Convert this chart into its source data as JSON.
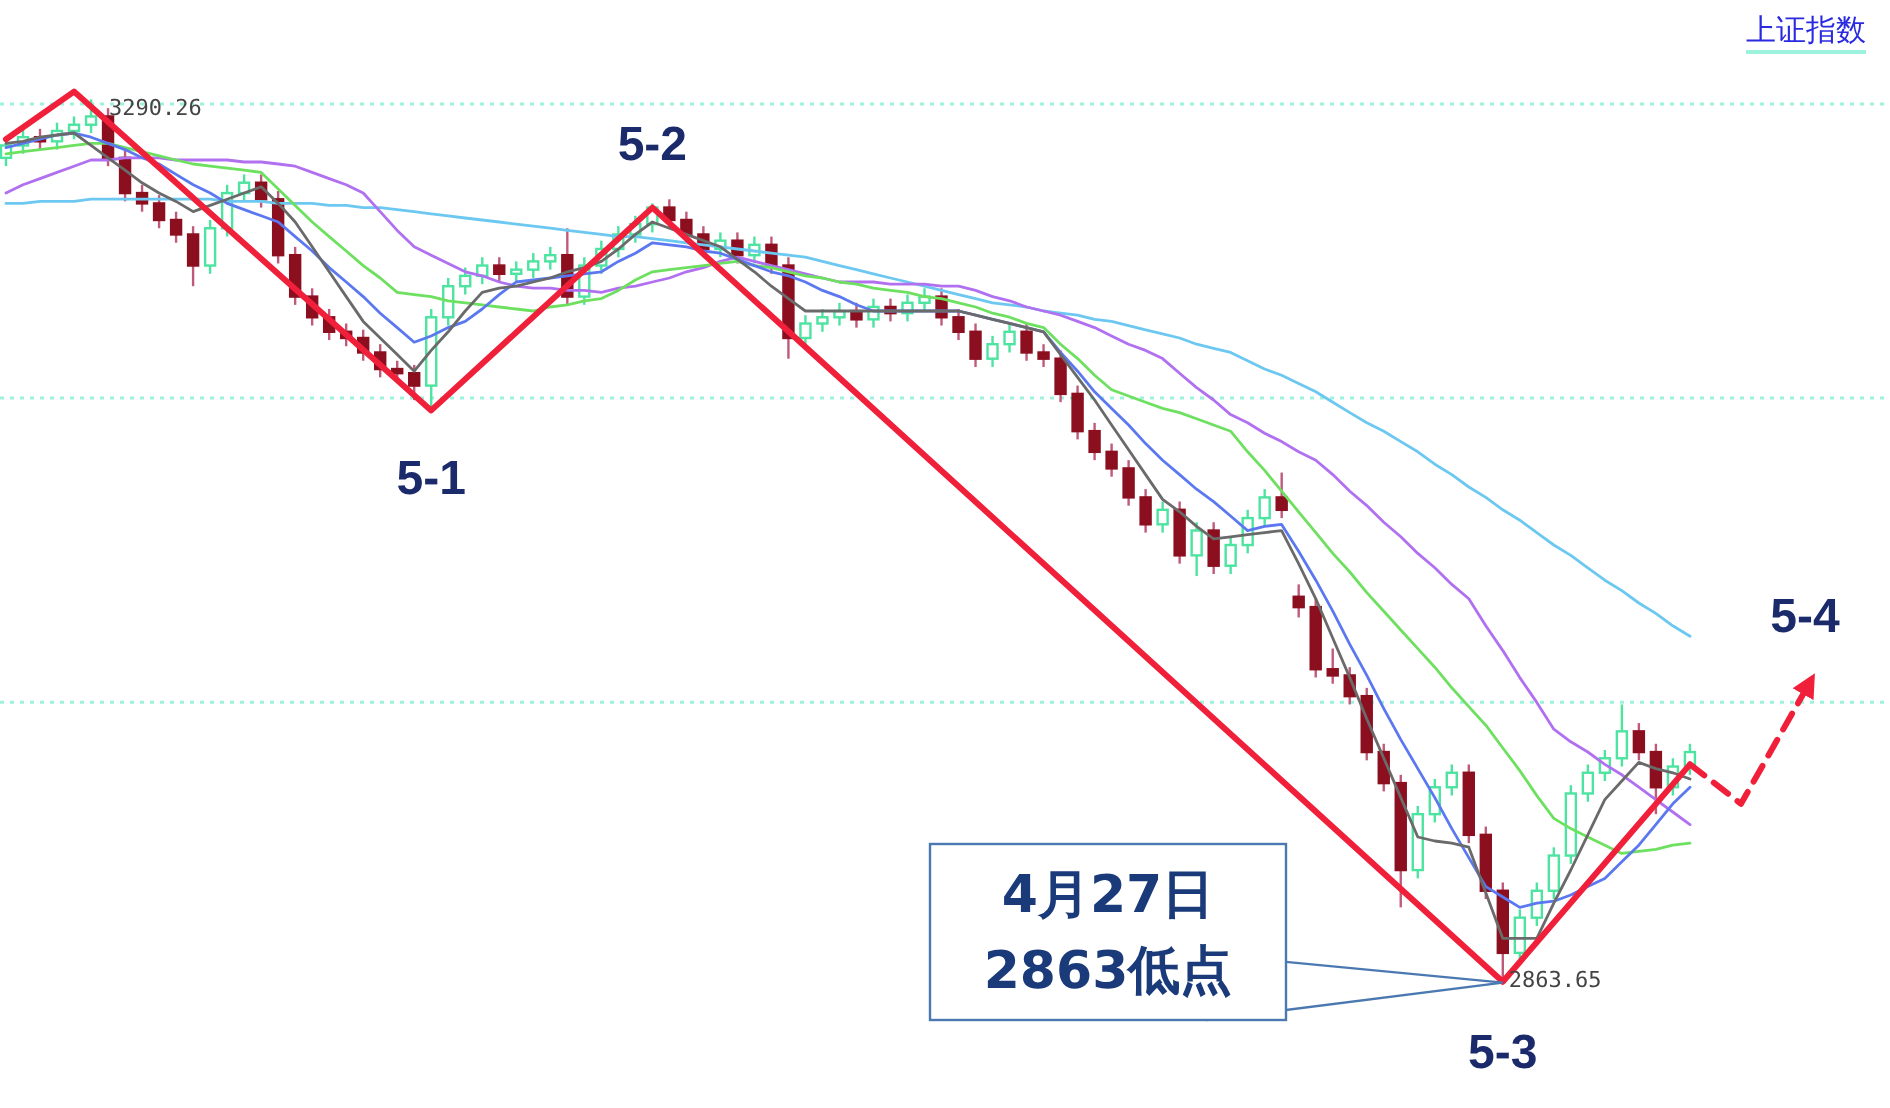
{
  "chart_data": {
    "type": "candlestick",
    "title": "上证指数",
    "categories": [
      null,
      null,
      null,
      null,
      null,
      null,
      null,
      null,
      null,
      null,
      null,
      null,
      null,
      null,
      null,
      null,
      null,
      null,
      null,
      null,
      null,
      null,
      null,
      null,
      null,
      null,
      null,
      null,
      null,
      null,
      null,
      null,
      null,
      null,
      null,
      null,
      null,
      null,
      null,
      null,
      null,
      null,
      null,
      null,
      null,
      null,
      null,
      null,
      null,
      null,
      null,
      null,
      null,
      null,
      null,
      null,
      null,
      null,
      null,
      null,
      null,
      null,
      null,
      null,
      null,
      null,
      null,
      null,
      null,
      null,
      null,
      null,
      null,
      null,
      null,
      null,
      null,
      null,
      null,
      null,
      null,
      null,
      null,
      null,
      null,
      null,
      null,
      null,
      null,
      null,
      null,
      null,
      null,
      null,
      null,
      null,
      null,
      null,
      null,
      null,
      null,
      null,
      null,
      null,
      null,
      null,
      null,
      null,
      null,
      null
    ],
    "ohlc": [
      [
        3262,
        3272,
        3258,
        3268
      ],
      [
        3268,
        3276,
        3264,
        3272
      ],
      [
        3272,
        3276,
        3266,
        3270
      ],
      [
        3270,
        3279,
        3266,
        3275
      ],
      [
        3275,
        3282,
        3271,
        3278
      ],
      [
        3278,
        3290.26,
        3274,
        3282
      ],
      [
        3282,
        3286,
        3258,
        3262
      ],
      [
        3262,
        3266,
        3241,
        3245
      ],
      [
        3245,
        3249,
        3236,
        3240
      ],
      [
        3240,
        3244,
        3228,
        3232
      ],
      [
        3232,
        3236,
        3221,
        3225
      ],
      [
        3225,
        3229,
        3200,
        3210
      ],
      [
        3210,
        3232,
        3206,
        3228
      ],
      [
        3228,
        3249,
        3224,
        3245
      ],
      [
        3245,
        3254,
        3241,
        3250
      ],
      [
        3250,
        3254,
        3238,
        3242
      ],
      [
        3242,
        3246,
        3211,
        3215
      ],
      [
        3215,
        3219,
        3191,
        3195
      ],
      [
        3195,
        3199,
        3181,
        3185
      ],
      [
        3185,
        3189,
        3174,
        3178
      ],
      [
        3178,
        3182,
        3171,
        3175
      ],
      [
        3175,
        3179,
        3164,
        3168
      ],
      [
        3168,
        3172,
        3156,
        3160
      ],
      [
        3160,
        3164,
        3154,
        3158
      ],
      [
        3158,
        3162,
        3145,
        3152
      ],
      [
        3152,
        3189,
        3140,
        3185
      ],
      [
        3185,
        3204,
        3181,
        3200
      ],
      [
        3200,
        3209,
        3196,
        3205
      ],
      [
        3205,
        3214,
        3201,
        3210
      ],
      [
        3210,
        3214,
        3202,
        3206
      ],
      [
        3206,
        3212,
        3202,
        3208
      ],
      [
        3208,
        3216,
        3204,
        3212
      ],
      [
        3212,
        3219,
        3208,
        3215
      ],
      [
        3215,
        3228,
        3191,
        3195
      ],
      [
        3195,
        3214,
        3191,
        3210
      ],
      [
        3210,
        3222,
        3206,
        3218
      ],
      [
        3218,
        3229,
        3214,
        3225
      ],
      [
        3225,
        3234,
        3221,
        3230
      ],
      [
        3230,
        3240,
        3226,
        3238
      ],
      [
        3238,
        3242,
        3228,
        3232
      ],
      [
        3232,
        3236,
        3221,
        3225
      ],
      [
        3225,
        3229,
        3214,
        3218
      ],
      [
        3218,
        3226,
        3214,
        3222
      ],
      [
        3222,
        3226,
        3211,
        3215
      ],
      [
        3215,
        3224,
        3211,
        3220
      ],
      [
        3220,
        3224,
        3206,
        3210
      ],
      [
        3210,
        3214,
        3165,
        3175
      ],
      [
        3175,
        3186,
        3171,
        3182
      ],
      [
        3182,
        3189,
        3178,
        3185
      ],
      [
        3185,
        3192,
        3181,
        3188
      ],
      [
        3188,
        3192,
        3180,
        3184
      ],
      [
        3184,
        3194,
        3180,
        3190
      ],
      [
        3190,
        3194,
        3183,
        3187
      ],
      [
        3187,
        3196,
        3183,
        3192
      ],
      [
        3192,
        3199,
        3188,
        3195
      ],
      [
        3195,
        3199,
        3181,
        3185
      ],
      [
        3185,
        3189,
        3174,
        3178
      ],
      [
        3178,
        3182,
        3161,
        3165
      ],
      [
        3165,
        3176,
        3161,
        3172
      ],
      [
        3172,
        3182,
        3168,
        3178
      ],
      [
        3178,
        3182,
        3164,
        3168
      ],
      [
        3168,
        3172,
        3161,
        3165
      ],
      [
        3165,
        3169,
        3144,
        3148
      ],
      [
        3148,
        3152,
        3126,
        3130
      ],
      [
        3130,
        3134,
        3116,
        3120
      ],
      [
        3120,
        3124,
        3108,
        3112
      ],
      [
        3112,
        3116,
        3094,
        3098
      ],
      [
        3098,
        3102,
        3081,
        3085
      ],
      [
        3085,
        3096,
        3081,
        3092
      ],
      [
        3092,
        3096,
        3066,
        3070
      ],
      [
        3070,
        3086,
        3060,
        3082
      ],
      [
        3082,
        3086,
        3061,
        3065
      ],
      [
        3065,
        3079,
        3061,
        3075
      ],
      [
        3075,
        3092,
        3071,
        3088
      ],
      [
        3088,
        3102,
        3084,
        3098
      ],
      [
        3098,
        3110,
        3088,
        3092
      ],
      [
        3050,
        3056,
        3040,
        3045
      ],
      [
        3045,
        3049,
        3011,
        3015
      ],
      [
        3015,
        3025,
        3008,
        3012
      ],
      [
        3012,
        3016,
        2998,
        3002
      ],
      [
        3002,
        3006,
        2971,
        2975
      ],
      [
        2975,
        2979,
        2956,
        2960
      ],
      [
        2960,
        2964,
        2900,
        2918
      ],
      [
        2918,
        2949,
        2914,
        2945
      ],
      [
        2945,
        2962,
        2941,
        2958
      ],
      [
        2958,
        2969,
        2954,
        2965
      ],
      [
        2965,
        2969,
        2931,
        2935
      ],
      [
        2935,
        2939,
        2904,
        2908
      ],
      [
        2908,
        2912,
        2863.65,
        2878
      ],
      [
        2878,
        2899,
        2874,
        2895
      ],
      [
        2895,
        2912,
        2891,
        2908
      ],
      [
        2908,
        2929,
        2904,
        2925
      ],
      [
        2925,
        2959,
        2921,
        2955
      ],
      [
        2955,
        2969,
        2951,
        2965
      ],
      [
        2965,
        2976,
        2961,
        2972
      ],
      [
        2972,
        2998,
        2968,
        2985
      ],
      [
        2985,
        2989,
        2971,
        2975
      ],
      [
        2975,
        2979,
        2945,
        2958
      ],
      [
        2958,
        2972,
        2954,
        2968
      ],
      [
        2968,
        2979,
        2964,
        2975
      ],
      null,
      null,
      null,
      null,
      null,
      null,
      null,
      null,
      null,
      null
    ],
    "series": [
      {
        "type": "line",
        "color": "#6cc8f0",
        "values": [
          3240,
          3240,
          3241,
          3241,
          3241,
          3242,
          3242,
          3242,
          3242,
          3242,
          3242,
          3242,
          3242,
          3241,
          3241,
          3241,
          3240,
          3240,
          3240,
          3239,
          3239,
          3238,
          3238,
          3237,
          3236,
          3235,
          3234,
          3233,
          3232,
          3231,
          3230,
          3229,
          3228,
          3227,
          3226,
          3225,
          3224,
          3224,
          3223,
          3222,
          3221,
          3220,
          3219,
          3218,
          3217,
          3216,
          3215,
          3214,
          3212,
          3210,
          3208,
          3206,
          3204,
          3202,
          3200,
          3198,
          3196,
          3194,
          3192,
          3191,
          3190,
          3188,
          3187,
          3186,
          3184,
          3183,
          3181,
          3179,
          3177,
          3175,
          3172,
          3170,
          3168,
          3164,
          3160,
          3157,
          3153,
          3149,
          3144,
          3139,
          3134,
          3130,
          3125,
          3120,
          3114,
          3109,
          3103,
          3098,
          3092,
          3087,
          3081,
          3075,
          3070,
          3064,
          3058,
          3053,
          3047,
          3042,
          3036,
          3031,
          null,
          null,
          null,
          null,
          null,
          null,
          null,
          null,
          null,
          null
        ]
      },
      {
        "type": "line",
        "color": "#b070f0",
        "values": [
          3245,
          3249,
          3252,
          3255,
          3258,
          3261,
          3261,
          3262,
          3262,
          3262,
          3261,
          3261,
          3261,
          3261,
          3260,
          3260,
          3259,
          3258,
          3255,
          3252,
          3249,
          3245,
          3236,
          3227,
          3219,
          3215,
          3211,
          3207,
          3205,
          3202,
          3200,
          3199,
          3199,
          3198,
          3198,
          3197,
          3199,
          3200,
          3202,
          3204,
          3207,
          3209,
          3212,
          3214,
          3212,
          3210,
          3208,
          3206,
          3204,
          3202,
          3202,
          3202,
          3201,
          3201,
          3201,
          3200,
          3200,
          3198,
          3195,
          3193,
          3190,
          3188,
          3186,
          3183,
          3180,
          3176,
          3172,
          3169,
          3165,
          3158,
          3151,
          3145,
          3138,
          3134,
          3129,
          3125,
          3120,
          3116,
          3109,
          3101,
          3094,
          3086,
          3079,
          3071,
          3064,
          3056,
          3049,
          3036,
          3024,
          3011,
          2999,
          2986,
          2980,
          2975,
          2969,
          2964,
          2958,
          2952,
          2946,
          2940,
          null,
          null,
          null,
          null,
          null,
          null,
          null,
          null,
          null,
          null
        ]
      },
      {
        "type": "line",
        "color": "#6ee060",
        "values": [
          3264,
          3265,
          3266,
          3267,
          3268,
          3269,
          3269,
          3267,
          3265,
          3263,
          3261,
          3259,
          3258,
          3257,
          3256,
          3255,
          3247,
          3239,
          3231,
          3224,
          3217,
          3210,
          3204,
          3197,
          3196,
          3195,
          3193,
          3192,
          3191,
          3190,
          3189,
          3188,
          3190,
          3191,
          3193,
          3194,
          3198,
          3203,
          3207,
          3208,
          3209,
          3210,
          3211,
          3212,
          3210,
          3209,
          3207,
          3205,
          3204,
          3202,
          3201,
          3199,
          3198,
          3197,
          3195,
          3194,
          3192,
          3190,
          3187,
          3185,
          3182,
          3180,
          3172,
          3165,
          3157,
          3150,
          3147,
          3144,
          3141,
          3139,
          3136,
          3133,
          3130,
          3120,
          3111,
          3101,
          3091,
          3081,
          3071,
          3062,
          3052,
          3043,
          3034,
          3025,
          3016,
          3006,
          2997,
          2988,
          2977,
          2966,
          2954,
          2943,
          2938,
          2934,
          2930,
          2926,
          2927,
          2928,
          2930,
          2931,
          null,
          null,
          null,
          null,
          null,
          null,
          null,
          null,
          null,
          null
        ]
      },
      {
        "type": "line",
        "color": "#5c78f0",
        "values": [
          3267,
          3269,
          3271,
          3273,
          3274,
          3272,
          3269,
          3266,
          3262,
          3259,
          3254,
          3249,
          3245,
          3240,
          3237,
          3234,
          3231,
          3224,
          3217,
          3209,
          3202,
          3195,
          3187,
          3180,
          3173,
          3176,
          3180,
          3183,
          3189,
          3196,
          3202,
          3203,
          3204,
          3205,
          3206,
          3207,
          3212,
          3216,
          3221,
          3220,
          3219,
          3217,
          3216,
          3213,
          3210,
          3207,
          3205,
          3202,
          3198,
          3195,
          3191,
          3188,
          3188,
          3188,
          3188,
          3188,
          3188,
          3186,
          3184,
          3182,
          3180,
          3178,
          3168,
          3159,
          3149,
          3141,
          3133,
          3124,
          3116,
          3109,
          3102,
          3096,
          3089,
          3082,
          3084,
          3085,
          3072,
          3058,
          3043,
          3027,
          3012,
          2996,
          2981,
          2967,
          2953,
          2938,
          2924,
          2910,
          2905,
          2900,
          2902,
          2903,
          2906,
          2910,
          2914,
          2922,
          2930,
          2940,
          2950,
          2958,
          null,
          null,
          null,
          null,
          null,
          null,
          null,
          null,
          null,
          null
        ]
      },
      {
        "type": "line",
        "color": "#6a6a6a",
        "values": [
          3269,
          3270,
          3272,
          3273,
          3274,
          3268,
          3262,
          3256,
          3250,
          3245,
          3241,
          3236,
          3239,
          3242,
          3245,
          3248,
          3240,
          3231,
          3219,
          3207,
          3195,
          3183,
          3175,
          3167,
          3159,
          3169,
          3178,
          3188,
          3197,
          3199,
          3200,
          3202,
          3204,
          3207,
          3209,
          3212,
          3218,
          3225,
          3231,
          3228,
          3225,
          3222,
          3219,
          3213,
          3207,
          3200,
          3194,
          3188,
          3188,
          3188,
          3188,
          3188,
          3188,
          3188,
          3188,
          3188,
          3188,
          3186,
          3184,
          3182,
          3180,
          3178,
          3167,
          3156,
          3145,
          3133,
          3121,
          3109,
          3097,
          3091,
          3084,
          3078,
          3079,
          3080,
          3081,
          3082,
          3066,
          3049,
          3030,
          3011,
          2991,
          2972,
          2953,
          2934,
          2932,
          2931,
          2929,
          2907,
          2885,
          2885,
          2885,
          2902,
          2918,
          2935,
          2952,
          2961,
          2970,
          2967,
          2965,
          2962,
          null,
          null,
          null,
          null,
          null,
          null,
          null,
          null,
          null,
          null
        ]
      },
      {
        "type": "line",
        "color": "#f0203a",
        "values": [
          3271,
          null,
          null,
          null,
          3294,
          null,
          null,
          null,
          null,
          null,
          null,
          null,
          null,
          null,
          null,
          null,
          null,
          null,
          null,
          null,
          null,
          null,
          null,
          null,
          null,
          3140,
          null,
          null,
          null,
          null,
          null,
          null,
          null,
          null,
          null,
          null,
          null,
          null,
          3238,
          null,
          null,
          null,
          null,
          null,
          null,
          null,
          null,
          null,
          null,
          null,
          null,
          null,
          null,
          null,
          null,
          null,
          null,
          null,
          null,
          null,
          null,
          null,
          null,
          null,
          null,
          null,
          null,
          null,
          null,
          null,
          null,
          null,
          null,
          null,
          null,
          null,
          null,
          null,
          null,
          null,
          null,
          null,
          null,
          null,
          null,
          null,
          null,
          null,
          2864,
          null,
          null,
          null,
          null,
          null,
          null,
          null,
          null,
          null,
          null,
          2969,
          null,
          null,
          null,
          null,
          null,
          null,
          null,
          null,
          null,
          null
        ]
      },
      {
        "type": "line",
        "color": "#f0203a",
        "line_style": "dashed",
        "values": [
          null,
          null,
          null,
          null,
          null,
          null,
          null,
          null,
          null,
          null,
          null,
          null,
          null,
          null,
          null,
          null,
          null,
          null,
          null,
          null,
          null,
          null,
          null,
          null,
          null,
          null,
          null,
          null,
          null,
          null,
          null,
          null,
          null,
          null,
          null,
          null,
          null,
          null,
          null,
          null,
          null,
          null,
          null,
          null,
          null,
          null,
          null,
          null,
          null,
          null,
          null,
          null,
          null,
          null,
          null,
          null,
          null,
          null,
          null,
          null,
          null,
          null,
          null,
          null,
          null,
          null,
          null,
          null,
          null,
          null,
          null,
          null,
          null,
          null,
          null,
          null,
          null,
          null,
          null,
          null,
          null,
          null,
          null,
          null,
          null,
          null,
          null,
          null,
          null,
          null,
          null,
          null,
          null,
          null,
          null,
          null,
          null,
          null,
          null,
          2969,
          null,
          null,
          2950,
          null,
          null,
          null,
          3008,
          null,
          null,
          null
        ]
      }
    ],
    "yticks": [
      {
        "value": 3288,
        "label": null
      },
      {
        "value": 3146,
        "label": null
      },
      {
        "value": 2999,
        "label": null
      }
    ],
    "grid": "y",
    "annotations": [
      "3290.26",
      "2863.65",
      "5-1",
      "5-2",
      "5-3",
      "5-4",
      "4月27日\n2863低点"
    ]
  }
}
